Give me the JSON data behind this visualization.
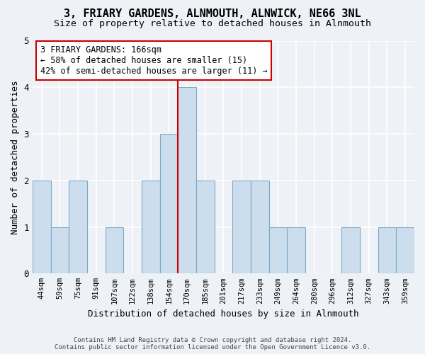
{
  "title_line1": "3, FRIARY GARDENS, ALNMOUTH, ALNWICK, NE66 3NL",
  "title_line2": "Size of property relative to detached houses in Alnmouth",
  "xlabel": "Distribution of detached houses by size in Alnmouth",
  "ylabel": "Number of detached properties",
  "footer_line1": "Contains HM Land Registry data © Crown copyright and database right 2024.",
  "footer_line2": "Contains public sector information licensed under the Open Government Licence v3.0.",
  "annotation_line1": "3 FRIARY GARDENS: 166sqm",
  "annotation_line2": "← 58% of detached houses are smaller (15)",
  "annotation_line3": "42% of semi-detached houses are larger (11) →",
  "bar_color": "#ccdded",
  "bar_edge_color": "#7aaac8",
  "reference_line_color": "#cc0000",
  "categories": [
    "44sqm",
    "59sqm",
    "75sqm",
    "91sqm",
    "107sqm",
    "122sqm",
    "138sqm",
    "154sqm",
    "170sqm",
    "185sqm",
    "201sqm",
    "217sqm",
    "233sqm",
    "249sqm",
    "264sqm",
    "280sqm",
    "296sqm",
    "312sqm",
    "327sqm",
    "343sqm",
    "359sqm"
  ],
  "values": [
    2,
    1,
    2,
    0,
    1,
    0,
    2,
    3,
    4,
    2,
    0,
    2,
    2,
    1,
    1,
    0,
    0,
    1,
    0,
    1,
    1
  ],
  "ref_bar_index": 8,
  "ylim": [
    0,
    5
  ],
  "yticks": [
    0,
    1,
    2,
    3,
    4,
    5
  ],
  "background_color": "#eef2f7",
  "grid_color": "#ffffff",
  "title_fontsize": 11,
  "subtitle_fontsize": 9.5,
  "annotation_fontsize": 8.5,
  "ylabel_fontsize": 9,
  "xlabel_fontsize": 9,
  "annotation_box_edge_color": "#cc0000",
  "annotation_box_fill": "#ffffff"
}
